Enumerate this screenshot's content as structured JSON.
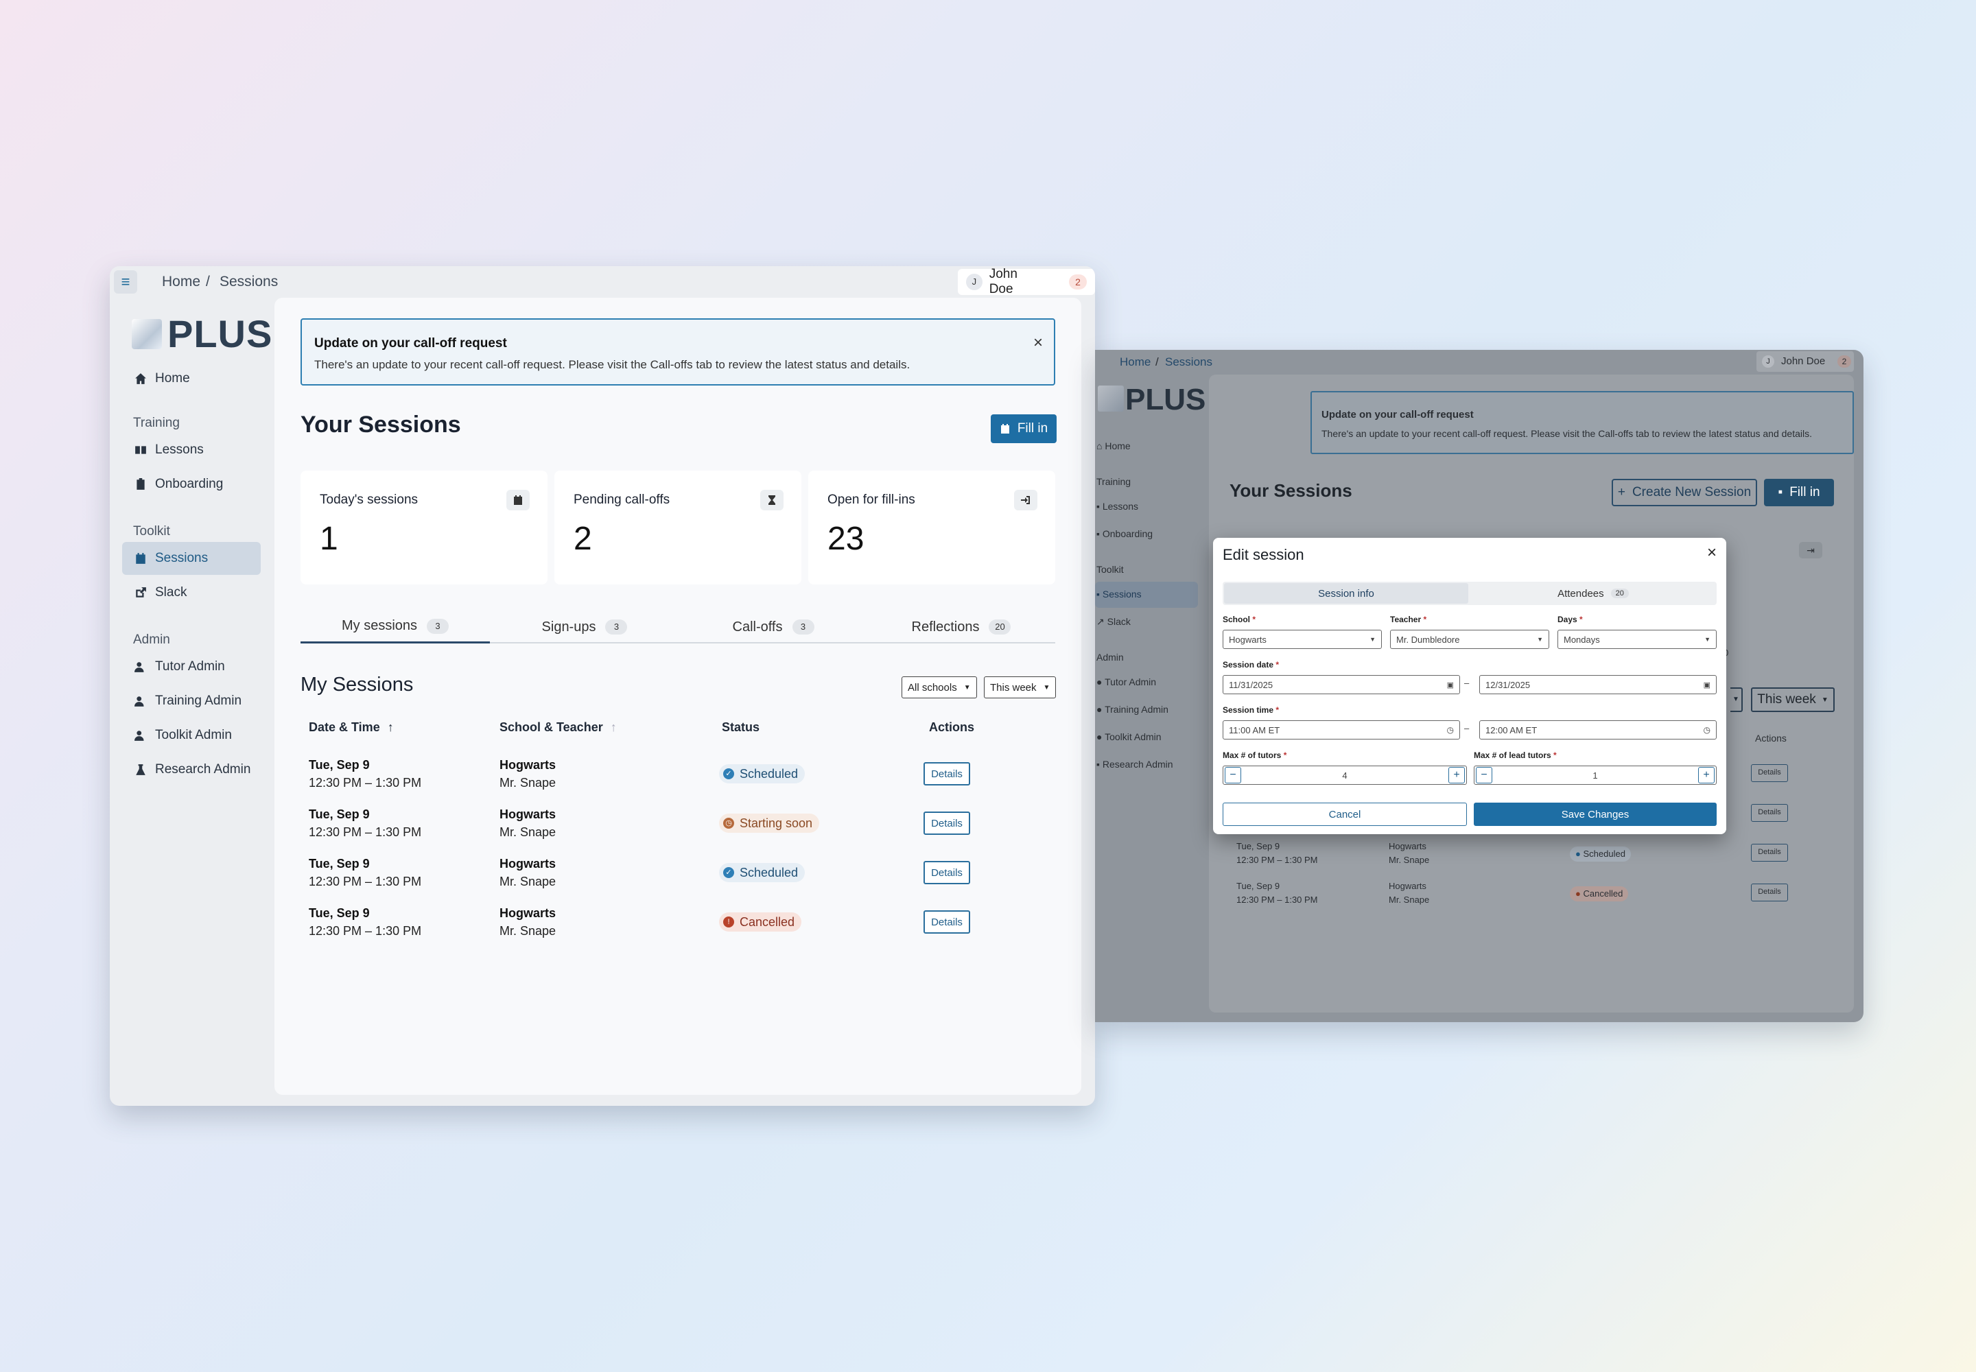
{
  "left_window": {
    "breadcrumb": {
      "home": "Home",
      "sep": "/",
      "current": "Sessions"
    },
    "user": {
      "initial": "J",
      "name": "John Doe",
      "notifications": "2"
    },
    "logo": "PLUS",
    "nav": {
      "home": "Home",
      "training_section": "Training",
      "lessons": "Lessons",
      "onboarding": "Onboarding",
      "toolkit_section": "Toolkit",
      "sessions": "Sessions",
      "slack": "Slack",
      "admin_section": "Admin",
      "tutor_admin": "Tutor Admin",
      "training_admin": "Training Admin",
      "toolkit_admin": "Toolkit Admin",
      "research_admin": "Research Admin"
    },
    "alert": {
      "title": "Update on your call-off request",
      "body": "There's an update to your recent call-off request. Please visit the Call-offs tab to review the latest status and details.",
      "close": "×"
    },
    "page_title": "Your Sessions",
    "fill_in": "Fill in",
    "stats": [
      {
        "label": "Today's sessions",
        "value": "1",
        "icon": "calendar-icon"
      },
      {
        "label": "Pending call-offs",
        "value": "2",
        "icon": "hourglass-icon"
      },
      {
        "label": "Open for fill-ins",
        "value": "23",
        "icon": "sign-in-icon"
      }
    ],
    "tabs": [
      {
        "label": "My sessions",
        "count": "3"
      },
      {
        "label": "Sign-ups",
        "count": "3"
      },
      {
        "label": "Call-offs",
        "count": "3"
      },
      {
        "label": "Reflections",
        "count": "20"
      }
    ],
    "section_title": "My Sessions",
    "filters": {
      "school": "All schools",
      "period": "This week"
    },
    "table": {
      "headers": {
        "date": "Date & Time",
        "school": "School & Teacher",
        "status": "Status",
        "actions": "Actions"
      },
      "rows": [
        {
          "date": "Tue, Sep 9",
          "time": "12:30 PM – 1:30 PM",
          "school": "Hogwarts",
          "teacher": "Mr. Snape",
          "status": "Scheduled",
          "action": "Details"
        },
        {
          "date": "Tue, Sep 9",
          "time": "12:30 PM – 1:30 PM",
          "school": "Hogwarts",
          "teacher": "Mr. Snape",
          "status": "Starting soon",
          "action": "Details"
        },
        {
          "date": "Tue, Sep 9",
          "time": "12:30 PM – 1:30 PM",
          "school": "Hogwarts",
          "teacher": "Mr. Snape",
          "status": "Scheduled",
          "action": "Details"
        },
        {
          "date": "Tue, Sep 9",
          "time": "12:30 PM – 1:30 PM",
          "school": "Hogwarts",
          "teacher": "Mr. Snape",
          "status": "Cancelled",
          "action": "Details"
        }
      ]
    }
  },
  "right_window": {
    "breadcrumb": {
      "home": "Home",
      "sep": "/",
      "current": "Sessions"
    },
    "user": {
      "initial": "J",
      "name": "John Doe",
      "notifications": "2"
    },
    "logo": "PLUS",
    "nav": {
      "home": "Home",
      "training_section": "Training",
      "lessons": "Lessons",
      "onboarding": "Onboarding",
      "toolkit_section": "Toolkit",
      "sessions": "Sessions",
      "slack": "Slack",
      "admin_section": "Admin",
      "tutor_admin": "Tutor Admin",
      "training_admin": "Training Admin",
      "toolkit_admin": "Toolkit Admin",
      "research_admin": "Research Admin"
    },
    "alert": {
      "title": "Update on your call-off request",
      "body": "There's an update to your recent call-off request. Please visit the Call-offs tab to review the latest status and details."
    },
    "page_title": "Your Sessions",
    "create_button": "Create New Session",
    "fill_in": "Fill in",
    "tab_count_partial": "0",
    "filter_period": "This week",
    "actions_header": "Actions",
    "rows": [
      {
        "date": "Tue, Sep 9",
        "time": "12:30 PM – 1:30 PM",
        "school": "Hogwarts",
        "teacher": "Mr. Snape",
        "status": "Scheduled",
        "action": "Details"
      },
      {
        "date": "Tue, Sep 9",
        "time": "12:30 PM – 1:30 PM",
        "school": "Hogwarts",
        "teacher": "Mr. Snape",
        "status": "Cancelled",
        "action": "Details"
      }
    ],
    "details_label": "Details",
    "modal": {
      "title": "Edit session",
      "close": "×",
      "tabs": {
        "info": "Session info",
        "attendees": "Attendees",
        "attendees_count": "20"
      },
      "school_label": "School",
      "school_value": "Hogwarts",
      "teacher_label": "Teacher",
      "teacher_value": "Mr. Dumbledore",
      "days_label": "Days",
      "days_value": "Mondays",
      "required_mark": "*",
      "date_label": "Session date",
      "date_start": "11/31/2025",
      "date_end": "12/31/2025",
      "range_sep": "–",
      "time_label": "Session time",
      "time_start": "11:00 AM ET",
      "time_end": "12:00 AM ET",
      "max_tutors_label": "Max # of tutors",
      "max_tutors_value": "4",
      "max_lead_label": "Max  # of lead tutors",
      "max_lead_value": "1",
      "cancel": "Cancel",
      "save": "Save Changes"
    }
  },
  "colors": {
    "primary": "#1e6ea4",
    "active_nav_bg": "#cfd8e3",
    "scheduled": "#2f7fb6",
    "starting_soon": "#b66a3c",
    "cancelled": "#b8422a"
  }
}
